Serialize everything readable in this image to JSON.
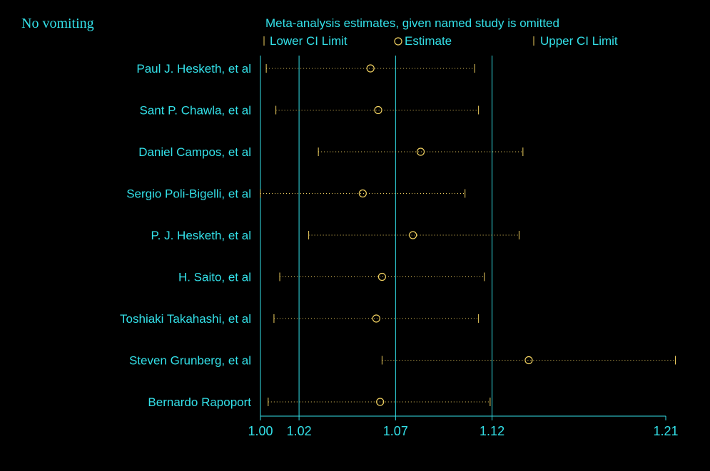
{
  "panel_label": "No vomiting",
  "colors": {
    "background": "#000000",
    "axis": "#33e0e8",
    "marker": "#f0d060",
    "text": "#33e0e8"
  },
  "chart_data": {
    "type": "forest",
    "title": "Meta-analysis estimates, given named study is omitted",
    "legend": {
      "lower": "Lower CI Limit",
      "estimate": "Estimate",
      "upper": "Upper CI Limit"
    },
    "xlim": [
      1.0,
      1.21
    ],
    "xticks": [
      "1.00",
      "1.02",
      "1.07",
      "1.12",
      "1.21"
    ],
    "reference_lines": [
      1.0,
      1.02,
      1.07,
      1.12
    ],
    "studies": [
      {
        "name": "Paul J. Hesketh, et al",
        "lower": 1.003,
        "estimate": 1.057,
        "upper": 1.111
      },
      {
        "name": "Sant P. Chawla, et al",
        "lower": 1.008,
        "estimate": 1.061,
        "upper": 1.113
      },
      {
        "name": "Daniel Campos, et al",
        "lower": 1.03,
        "estimate": 1.083,
        "upper": 1.136
      },
      {
        "name": "Sergio Poli-Bigelli, et al",
        "lower": 1.0,
        "estimate": 1.053,
        "upper": 1.106
      },
      {
        "name": "P. J. Hesketh, et al",
        "lower": 1.025,
        "estimate": 1.079,
        "upper": 1.134
      },
      {
        "name": "H. Saito, et al",
        "lower": 1.01,
        "estimate": 1.063,
        "upper": 1.116
      },
      {
        "name": "Toshiaki Takahashi, et al",
        "lower": 1.007,
        "estimate": 1.06,
        "upper": 1.113
      },
      {
        "name": "Steven Grunberg, et al",
        "lower": 1.063,
        "estimate": 1.139,
        "upper": 1.215
      },
      {
        "name": "Bernardo Rapoport",
        "lower": 1.004,
        "estimate": 1.062,
        "upper": 1.119
      }
    ]
  }
}
